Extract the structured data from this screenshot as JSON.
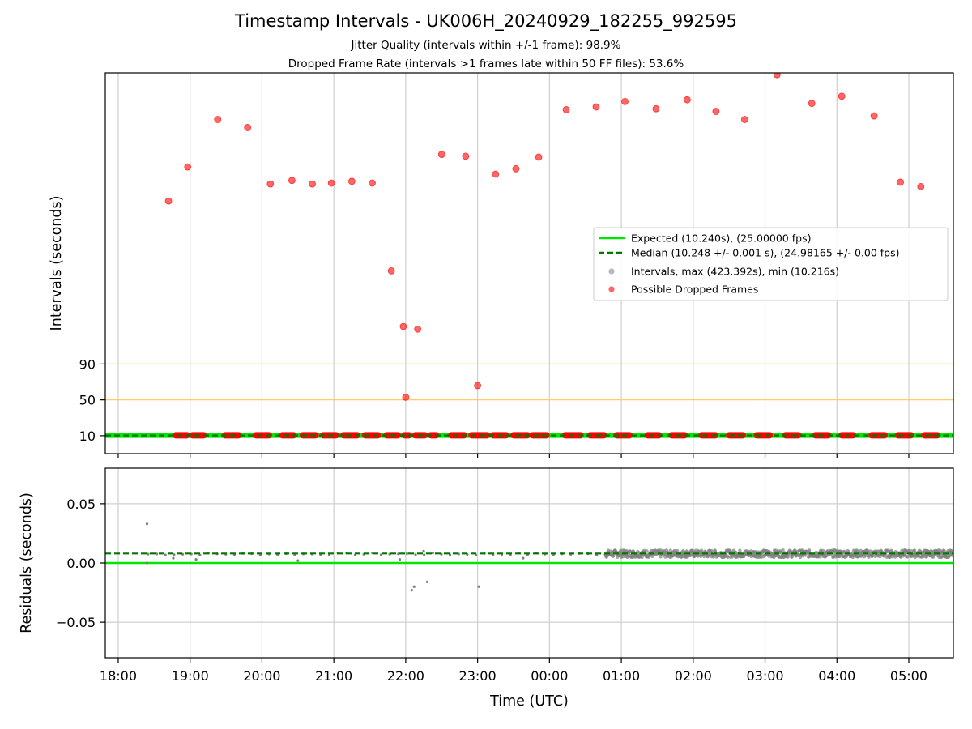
{
  "chart_data": [
    {
      "type": "scatter",
      "title": "Timestamp Intervals - UK006H_20240929_182255_992595",
      "subtitle_1": "Jitter Quality (intervals within +/-1 frame): 98.9%",
      "subtitle_2": "Dropped Frame Rate (intervals >1 frames late within 50 FF files): 53.6%",
      "ylabel": "Intervals (seconds)",
      "y_ticks": [
        10,
        50,
        90
      ],
      "y_reference_lines": [
        50,
        90
      ],
      "ylim": [
        -10,
        415
      ],
      "xlim_hours": [
        17.82,
        29.62
      ],
      "grid": "vertical",
      "legend_position": "center-right",
      "series": [
        {
          "name": "Expected (10.240s), (25.00000 fps)",
          "color": "#00e600",
          "style": "solid",
          "y": 10.24
        },
        {
          "name": "Median (10.248 +/- 0.001 s), (24.98165 +/- 0.00 fps)",
          "color": "#007800",
          "style": "dashed",
          "y": 10.248
        },
        {
          "name": "Intervals, max (423.392s), min (10.216s)",
          "color": "#808080",
          "style": "point",
          "x_range": [
            "18:25",
            "05:37"
          ],
          "y": 10.25
        },
        {
          "name": "Possible Dropped Frames",
          "color": "#ff0000",
          "style": "point",
          "points": [
            [
              "18:42",
              272
            ],
            [
              "18:58",
              310
            ],
            [
              "19:23",
              363
            ],
            [
              "19:48",
              354
            ],
            [
              "20:07",
              291
            ],
            [
              "20:25",
              295
            ],
            [
              "20:42",
              291
            ],
            [
              "20:58",
              292
            ],
            [
              "21:15",
              294
            ],
            [
              "21:32",
              292
            ],
            [
              "21:48",
              194
            ],
            [
              "21:58",
              132
            ],
            [
              "22:00",
              53
            ],
            [
              "22:10",
              129
            ],
            [
              "22:30",
              324
            ],
            [
              "22:50",
              322
            ],
            [
              "23:00",
              66
            ],
            [
              "23:15",
              302
            ],
            [
              "23:32",
              308
            ],
            [
              "23:51",
              321
            ],
            [
              "00:14",
              374
            ],
            [
              "00:39",
              377
            ],
            [
              "01:03",
              383
            ],
            [
              "01:29",
              375
            ],
            [
              "01:55",
              385
            ],
            [
              "02:19",
              372
            ],
            [
              "02:43",
              363
            ],
            [
              "03:10",
              413
            ],
            [
              "03:39",
              381
            ],
            [
              "04:04",
              389
            ],
            [
              "04:31",
              367
            ],
            [
              "04:53",
              293
            ],
            [
              "05:10",
              288
            ]
          ],
          "baseline_clusters": [
            [
              "18:48",
              "18:58"
            ],
            [
              "19:02",
              "19:12"
            ],
            [
              "19:29",
              "19:41"
            ],
            [
              "19:55",
              "20:06"
            ],
            [
              "20:17",
              "20:27"
            ],
            [
              "20:34",
              "20:45"
            ],
            [
              "20:51",
              "21:02"
            ],
            [
              "21:08",
              "21:20"
            ],
            [
              "21:26",
              "21:37"
            ],
            [
              "21:44",
              "21:54"
            ],
            [
              "21:59",
              "22:03"
            ],
            [
              "22:08",
              "22:16"
            ],
            [
              "22:21",
              "22:26"
            ],
            [
              "22:38",
              "22:49"
            ],
            [
              "22:55",
              "23:08"
            ],
            [
              "23:13",
              "23:24"
            ],
            [
              "23:30",
              "23:42"
            ],
            [
              "23:46",
              "23:58"
            ],
            [
              "00:13",
              "00:26"
            ],
            [
              "00:34",
              "00:46"
            ],
            [
              "00:56",
              "01:07"
            ],
            [
              "01:22",
              "01:32"
            ],
            [
              "01:42",
              "01:53"
            ],
            [
              "02:07",
              "02:19"
            ],
            [
              "02:30",
              "02:42"
            ],
            [
              "02:53",
              "03:04"
            ],
            [
              "03:17",
              "03:28"
            ],
            [
              "03:42",
              "03:53"
            ],
            [
              "04:04",
              "04:14"
            ],
            [
              "04:29",
              "04:40"
            ],
            [
              "04:51",
              "05:02"
            ],
            [
              "05:13",
              "05:24"
            ]
          ]
        }
      ]
    },
    {
      "type": "scatter",
      "xlabel": "Time (UTC)",
      "ylabel": "Residuals (seconds)",
      "y_ticks": [
        0.05,
        0.0,
        -0.05
      ],
      "y_tick_labels": [
        "0.05",
        "0.00",
        "−0.05"
      ],
      "ylim": [
        -0.08,
        0.08
      ],
      "x_tick_labels": [
        "18:00",
        "19:00",
        "20:00",
        "21:00",
        "22:00",
        "23:00",
        "00:00",
        "01:00",
        "02:00",
        "03:00",
        "04:00",
        "05:00"
      ],
      "grid": "both",
      "series": [
        {
          "name": "Expected",
          "color": "#00e600",
          "style": "solid",
          "y": 0.0
        },
        {
          "name": "Median",
          "color": "#007800",
          "style": "dashed",
          "y": 0.008
        },
        {
          "name": "Residuals",
          "color": "#808080",
          "style": "point",
          "outliers": [
            [
              "18:24",
              0.033
            ],
            [
              "18:24",
              0.0
            ],
            [
              "18:46",
              0.004
            ],
            [
              "19:05",
              0.003
            ],
            [
              "20:30",
              0.002
            ],
            [
              "22:05",
              -0.023
            ],
            [
              "22:07",
              -0.02
            ],
            [
              "22:18",
              -0.016
            ],
            [
              "23:01",
              -0.02
            ],
            [
              "21:55",
              0.003
            ],
            [
              "22:15",
              0.01
            ],
            [
              "23:38",
              0.004
            ]
          ],
          "dense_from": "00:47"
        }
      ]
    }
  ]
}
